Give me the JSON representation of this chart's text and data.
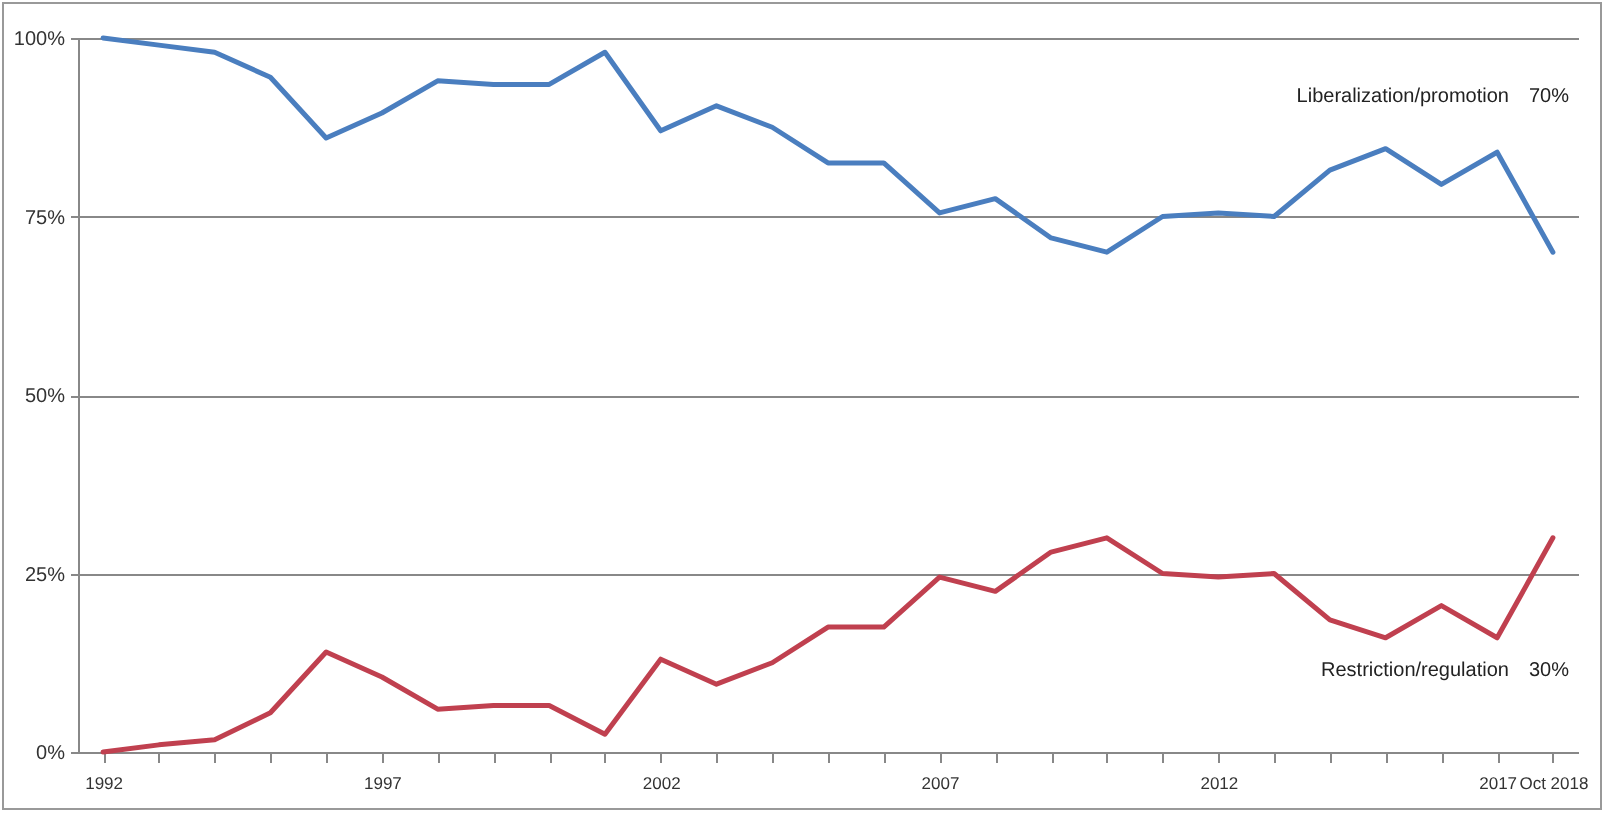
{
  "chart_data": {
    "type": "line",
    "categories": [
      "1992",
      null,
      null,
      null,
      null,
      "1997",
      null,
      null,
      null,
      null,
      "2002",
      null,
      null,
      null,
      null,
      "2007",
      null,
      null,
      null,
      null,
      "2012",
      null,
      null,
      null,
      null,
      "2017",
      "Oct 2018"
    ],
    "series": [
      {
        "name": "Liberalization/promotion",
        "color": "#4a7ebf",
        "values": [
          100,
          99,
          98,
          94.5,
          86,
          89.5,
          94,
          93.5,
          93.5,
          98,
          87,
          90.5,
          87.5,
          82.5,
          82.5,
          75.5,
          77.5,
          72,
          70,
          75,
          75.5,
          75,
          81.5,
          84.5,
          79.5,
          84,
          70
        ]
      },
      {
        "name": "Restriction/regulation",
        "color": "#c0404f",
        "values": [
          0,
          1,
          1.7,
          5.5,
          14,
          10.5,
          6,
          6.5,
          6.5,
          2.5,
          13,
          9.5,
          12.5,
          17.5,
          17.5,
          24.5,
          22.5,
          28,
          30,
          25,
          24.5,
          25,
          18.5,
          16,
          20.5,
          16,
          30
        ]
      }
    ],
    "annotations": [
      "70%",
      "30%"
    ],
    "ylim": [
      0,
      100
    ],
    "yticks": [
      {
        "value": 0,
        "label": "0%"
      },
      {
        "value": 25,
        "label": "25%"
      },
      {
        "value": 50,
        "label": "50%"
      },
      {
        "value": 75,
        "label": "75%"
      },
      {
        "value": 100,
        "label": "100%"
      }
    ],
    "grid": "y",
    "marker": "none",
    "line_style": "solid"
  }
}
